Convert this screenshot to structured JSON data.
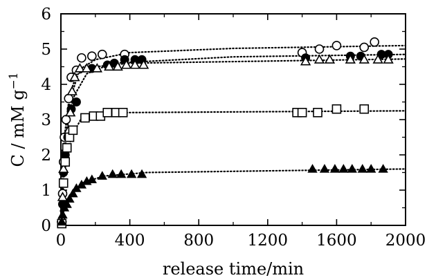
{
  "chart_data": {
    "type": "scatter",
    "xlabel": "release time/min",
    "ylabel_main": "C / mM g",
    "ylabel_sup": "−1",
    "xlim": [
      0,
      2000
    ],
    "ylim": [
      0,
      6
    ],
    "xticks": [
      0,
      400,
      800,
      1200,
      1600,
      2000
    ],
    "yticks": [
      0,
      1,
      2,
      3,
      4,
      5,
      6
    ],
    "grid": false,
    "series": [
      {
        "marker": "open-circle",
        "fit": [
          [
            0,
            0
          ],
          [
            20,
            2.5
          ],
          [
            50,
            3.7
          ],
          [
            100,
            4.4
          ],
          [
            200,
            4.7
          ],
          [
            400,
            4.9
          ],
          [
            1000,
            5.02
          ],
          [
            2000,
            5.1
          ]
        ],
        "points": [
          [
            5,
            0.1
          ],
          [
            10,
            0.9
          ],
          [
            15,
            1.8
          ],
          [
            20,
            2.5
          ],
          [
            30,
            3.0
          ],
          [
            45,
            3.6
          ],
          [
            60,
            4.2
          ],
          [
            90,
            4.4
          ],
          [
            120,
            4.75
          ],
          [
            180,
            4.8
          ],
          [
            240,
            4.85
          ],
          [
            370,
            4.85
          ],
          [
            1400,
            4.9
          ],
          [
            1500,
            5.0
          ],
          [
            1600,
            5.1
          ],
          [
            1760,
            5.05
          ],
          [
            1820,
            5.2
          ]
        ]
      },
      {
        "marker": "filled-circle",
        "fit": [
          [
            0,
            0
          ],
          [
            20,
            2.0
          ],
          [
            50,
            3.3
          ],
          [
            80,
            3.7
          ],
          [
            150,
            4.3
          ],
          [
            300,
            4.6
          ],
          [
            1000,
            4.78
          ],
          [
            2000,
            4.85
          ]
        ],
        "points": [
          [
            5,
            0.1
          ],
          [
            10,
            0.6
          ],
          [
            15,
            1.5
          ],
          [
            25,
            2.0
          ],
          [
            40,
            2.5
          ],
          [
            60,
            3.3
          ],
          [
            90,
            3.5
          ],
          [
            180,
            4.45
          ],
          [
            270,
            4.55
          ],
          [
            310,
            4.6
          ],
          [
            370,
            4.7
          ],
          [
            430,
            4.7
          ],
          [
            470,
            4.7
          ],
          [
            1420,
            4.75
          ],
          [
            1680,
            4.8
          ],
          [
            1740,
            4.8
          ],
          [
            1860,
            4.85
          ],
          [
            1900,
            4.85
          ]
        ]
      },
      {
        "marker": "open-triangle",
        "fit": [
          [
            0,
            0
          ],
          [
            10,
            1.5
          ],
          [
            30,
            2.5
          ],
          [
            50,
            3.5
          ],
          [
            100,
            4.3
          ],
          [
            200,
            4.5
          ],
          [
            400,
            4.6
          ],
          [
            2000,
            4.72
          ]
        ],
        "points": [
          [
            5,
            0.2
          ],
          [
            10,
            0.8
          ],
          [
            15,
            1.6
          ],
          [
            30,
            2.2
          ],
          [
            45,
            2.7
          ],
          [
            55,
            3.2
          ],
          [
            65,
            3.8
          ],
          [
            80,
            4.2
          ],
          [
            110,
            4.45
          ],
          [
            150,
            4.45
          ],
          [
            210,
            4.45
          ],
          [
            280,
            4.5
          ],
          [
            330,
            4.5
          ],
          [
            380,
            4.55
          ],
          [
            430,
            4.55
          ],
          [
            480,
            4.55
          ],
          [
            1420,
            4.65
          ],
          [
            1500,
            4.7
          ],
          [
            1560,
            4.7
          ],
          [
            1680,
            4.7
          ],
          [
            1760,
            4.7
          ],
          [
            1840,
            4.7
          ],
          [
            1900,
            4.7
          ]
        ]
      },
      {
        "marker": "open-square",
        "fit": [
          [
            0,
            0
          ],
          [
            20,
            1.5
          ],
          [
            60,
            2.5
          ],
          [
            120,
            3.05
          ],
          [
            200,
            3.15
          ],
          [
            400,
            3.2
          ],
          [
            2000,
            3.25
          ]
        ],
        "points": [
          [
            5,
            0.05
          ],
          [
            15,
            1.2
          ],
          [
            25,
            1.8
          ],
          [
            35,
            2.2
          ],
          [
            50,
            2.5
          ],
          [
            70,
            2.7
          ],
          [
            140,
            3.05
          ],
          [
            190,
            3.1
          ],
          [
            230,
            3.1
          ],
          [
            270,
            3.2
          ],
          [
            320,
            3.2
          ],
          [
            360,
            3.2
          ],
          [
            1370,
            3.2
          ],
          [
            1400,
            3.2
          ],
          [
            1490,
            3.2
          ],
          [
            1600,
            3.3
          ],
          [
            1760,
            3.3
          ]
        ]
      },
      {
        "marker": "filled-triangle",
        "fit": [
          [
            0,
            0
          ],
          [
            20,
            0.5
          ],
          [
            50,
            0.8
          ],
          [
            120,
            1.2
          ],
          [
            250,
            1.4
          ],
          [
            500,
            1.5
          ],
          [
            2000,
            1.6
          ]
        ],
        "points": [
          [
            5,
            0.1
          ],
          [
            10,
            0.3
          ],
          [
            20,
            0.5
          ],
          [
            35,
            0.6
          ],
          [
            50,
            0.75
          ],
          [
            70,
            0.9
          ],
          [
            90,
            1.05
          ],
          [
            120,
            1.15
          ],
          [
            150,
            1.25
          ],
          [
            180,
            1.3
          ],
          [
            240,
            1.4
          ],
          [
            300,
            1.45
          ],
          [
            350,
            1.45
          ],
          [
            410,
            1.45
          ],
          [
            470,
            1.45
          ],
          [
            1460,
            1.6
          ],
          [
            1530,
            1.6
          ],
          [
            1590,
            1.6
          ],
          [
            1640,
            1.6
          ],
          [
            1690,
            1.6
          ],
          [
            1750,
            1.6
          ],
          [
            1800,
            1.6
          ],
          [
            1870,
            1.6
          ]
        ]
      }
    ]
  }
}
